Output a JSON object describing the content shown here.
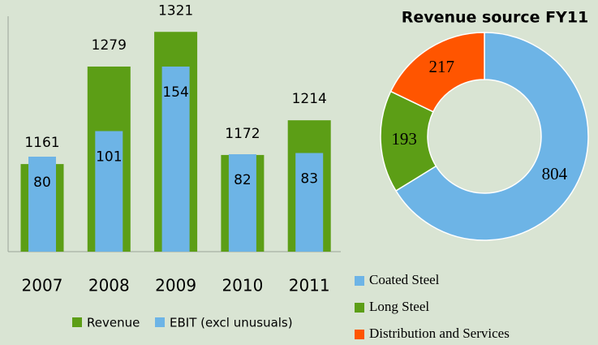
{
  "chart_data": [
    {
      "type": "bar",
      "categories": [
        "2007",
        "2008",
        "2009",
        "2010",
        "2011"
      ],
      "series": [
        {
          "name": "Revenue",
          "color": "#5c9e16",
          "values": [
            1161,
            1279,
            1321,
            1172,
            1214
          ]
        },
        {
          "name": "EBIT (excl unusuals)",
          "color": "#6db4e6",
          "axis": "y2",
          "values": [
            80,
            101,
            154,
            82,
            83
          ]
        }
      ],
      "ylim": [
        1055,
        1335
      ],
      "y2lim": [
        2,
        192
      ]
    },
    {
      "type": "pie",
      "title": "Revenue source FY11",
      "categories": [
        "Coated Steel",
        "Long Steel",
        "Distribution and Services"
      ],
      "values": [
        804,
        193,
        217
      ],
      "colors": [
        "#6db4e6",
        "#5c9e16",
        "#ff5500"
      ]
    }
  ]
}
